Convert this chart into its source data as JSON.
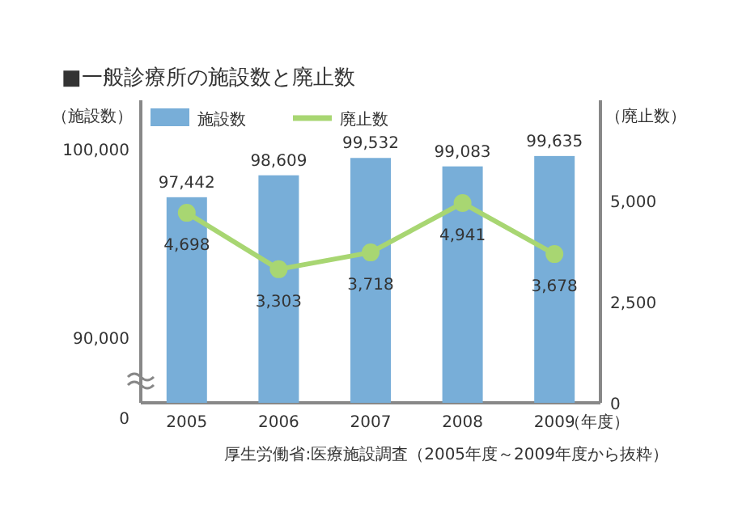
{
  "chart_data": {
    "type": "bar",
    "title": "■一般診療所の施設数と廃止数",
    "categories": [
      "2005",
      "2006",
      "2007",
      "2008",
      "2009"
    ],
    "xlabel": "（年度）",
    "ylabel": "（施設数）",
    "y2label": "（廃止数）",
    "series": [
      {
        "name": "施設数",
        "color": "#78aed8",
        "values": [
          97442,
          98609,
          99532,
          99083,
          99635
        ],
        "value_labels": [
          "97,442",
          "98,609",
          "99,532",
          "99,083",
          "99,635"
        ]
      },
      {
        "name": "廃止数",
        "type": "line",
        "axis": "y2",
        "color": "#a8d672",
        "marker": "circle",
        "values": [
          4698,
          3303,
          3718,
          4941,
          3678
        ],
        "value_labels": [
          "4,698",
          "3,303",
          "3,718",
          "4,941",
          "3,678"
        ]
      }
    ],
    "ylim": [
      86500,
      102600
    ],
    "yticks": [
      {
        "value": 90000,
        "label": "90,000"
      },
      {
        "value": 100000,
        "label": "100,000"
      }
    ],
    "y2lim": [
      0,
      7480
    ],
    "y2ticks": [
      0,
      {
        "value": 2500,
        "label": "2,500"
      },
      {
        "value": 5000,
        "label": "5,000"
      }
    ],
    "legend": "top left",
    "annotations": [
      "0",
      "厚生労働省:医療施設調査（2005年度～2009年度から抜粋）"
    ]
  }
}
